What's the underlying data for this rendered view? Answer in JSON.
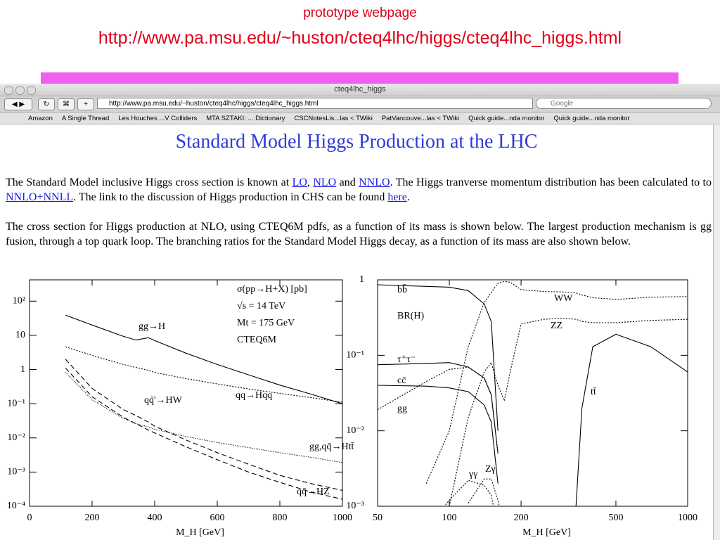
{
  "slide": {
    "caption": "prototype webpage",
    "url": "http://www.pa.msu.edu/~huston/cteq4lhc/higgs/cteq4lhc_higgs.html"
  },
  "browser": {
    "window_title": "cteq4lhc_higgs",
    "address": "http://www.pa.msu.edu/~huston/cteq4lhc/higgs/cteq4lhc_higgs.html",
    "search": "Google",
    "bookmarks": [
      "Amazon",
      "A Single Thread",
      "Les Houches ...V Colliders",
      "MTA SZTAKI: ... Dictionary",
      "CSCNotesLis...las < TWiki",
      "PatVancouve...las < TWiki",
      "Quick guide...nda monitor",
      "Quick guide...nda monitor"
    ]
  },
  "page": {
    "heading": "Standard Model Higgs Production at the LHC",
    "paragraphs": [
      [
        {
          "text": "The Standard Model inclusive Higgs cross section is known at "
        },
        {
          "link": "LO"
        },
        {
          "text": ", "
        },
        {
          "link": "NLO"
        },
        {
          "text": " and "
        },
        {
          "link": "NNLO"
        },
        {
          "text": ". The Higgs tranverse momentum distribution has been calculated to to "
        },
        {
          "link": "NNLO+NNLL"
        },
        {
          "text": ".  The link to the discussion of Higgs production in CHS can be found "
        },
        {
          "link": "here"
        },
        {
          "text": "."
        }
      ],
      [
        {
          "text": "The cross section for Higgs production at NLO, using CTEQ6M pdfs,  as a function of its mass is shown below. The largest production mechanism is gg fusion, through a top quark loop. The branching ratios for the Standard Model Higgs decay, as a function of its mass are also shown below."
        }
      ]
    ]
  },
  "chart_data": [
    {
      "type": "line",
      "xlabel": "M_H [GeV]",
      "xlim": [
        0,
        1000
      ],
      "xticks": [
        0,
        200,
        400,
        600,
        800,
        1000
      ],
      "ylog": true,
      "ylim": [
        0.0001,
        420
      ],
      "yticks": [
        {
          "value": 100,
          "label": "10²"
        },
        10,
        1,
        {
          "value": 0.1,
          "label": "10⁻¹"
        },
        {
          "value": 0.01,
          "label": "10⁻²"
        },
        {
          "value": 0.001,
          "label": "10⁻³"
        },
        {
          "value": 0.0001,
          "label": "10⁻⁴"
        }
      ],
      "annotations": [
        "σ(pp→H+X) [pb]",
        "√s = 14 TeV",
        "Mt = 175 GeV",
        "CTEQ6M"
      ],
      "x": [
        115,
        200,
        300,
        340,
        380,
        400,
        500,
        600,
        700,
        800,
        900,
        1000
      ],
      "series": [
        {
          "name": "gg→H",
          "color": "#000000",
          "style": "solid",
          "values": [
            39,
            20,
            9.3,
            7.3,
            8.5,
            7,
            3,
            1.4,
            0.7,
            0.35,
            0.19,
            0.1
          ]
        },
        {
          "name": "qq→Hqq",
          "color": "#000000",
          "style": "dotted",
          "values": [
            4.6,
            2.6,
            1.4,
            1.15,
            0.95,
            0.82,
            0.54,
            0.38,
            0.27,
            0.2,
            0.15,
            0.11
          ]
        },
        {
          "name": "qq̄'→HW",
          "color": "#000000",
          "style": "dashed",
          "values": [
            2,
            0.28,
            0.067,
            0.045,
            0.029,
            0.022,
            0.0087,
            0.0037,
            0.0017,
            0.0008,
            0.00046,
            0.00029
          ]
        },
        {
          "name": "gg,qq̄→Htt̄",
          "color": "#000000",
          "style": "fine",
          "values": [
            0.83,
            0.13,
            0.037,
            0.026,
            0.021,
            0.018,
            0.011,
            0.0073,
            0.0052,
            0.0037,
            0.0027,
            0.0019
          ]
        },
        {
          "name": "qq̄→HZ",
          "color": "#000000",
          "style": "dashed",
          "values": [
            1.1,
            0.16,
            0.04,
            0.026,
            0.017,
            0.014,
            0.0055,
            0.0023,
            0.001,
            0.0005,
            0.00026,
            0.00016
          ]
        }
      ]
    },
    {
      "type": "line",
      "xlabel": "M_H [GeV]",
      "xlog": true,
      "xlim": [
        50,
        1000
      ],
      "xticks": [
        50,
        100,
        200,
        500,
        1000
      ],
      "ylog": true,
      "ylim": [
        0.001,
        1
      ],
      "yticks": [
        1,
        {
          "value": 0.1,
          "label": "10⁻¹"
        },
        {
          "value": 0.01,
          "label": "10⁻²"
        },
        {
          "value": 0.001,
          "label": "10⁻³"
        }
      ],
      "annotations": [
        "BR(H)"
      ],
      "x": [
        50,
        80,
        100,
        120,
        140,
        150,
        160,
        170,
        180,
        200,
        250,
        300,
        340,
        360,
        400,
        500,
        700,
        1000
      ],
      "series": [
        {
          "name": "bb̄",
          "color": "#000000",
          "style": "solid",
          "values": [
            0.86,
            0.82,
            0.8,
            0.72,
            0.48,
            0.28,
            0.01,
            null,
            null,
            null,
            null,
            null,
            null,
            null,
            null,
            null,
            null,
            null
          ]
        },
        {
          "name": "WW",
          "color": "#000000",
          "style": "dotted",
          "values": [
            null,
            0.002,
            0.01,
            0.13,
            0.5,
            0.68,
            0.9,
            0.95,
            0.93,
            0.74,
            0.7,
            0.69,
            0.67,
            0.63,
            0.58,
            0.55,
            0.59,
            0.6
          ]
        },
        {
          "name": "ZZ",
          "color": "#000000",
          "style": "dotted",
          "values": [
            null,
            null,
            0.001,
            0.015,
            0.06,
            0.08,
            0.04,
            0.025,
            0.06,
            0.26,
            0.3,
            0.31,
            0.3,
            0.28,
            0.27,
            0.27,
            0.29,
            0.3
          ]
        },
        {
          "name": "τ⁺τ⁻",
          "color": "#000000",
          "style": "solid",
          "values": [
            0.075,
            0.078,
            0.08,
            0.07,
            0.05,
            0.03,
            0.005,
            null,
            null,
            null,
            null,
            null,
            null,
            null,
            null,
            null,
            null,
            null
          ]
        },
        {
          "name": "cc̄",
          "color": "#000000",
          "style": "solid",
          "values": [
            0.04,
            0.039,
            0.037,
            0.033,
            0.022,
            0.013,
            0.002,
            null,
            null,
            null,
            null,
            null,
            null,
            null,
            null,
            null,
            null,
            null
          ]
        },
        {
          "name": "gg",
          "color": "#000000",
          "style": "dotted",
          "values": [
            0.019,
            0.045,
            0.065,
            0.07,
            0.05,
            0.03,
            0.005,
            null,
            null,
            null,
            null,
            null,
            null,
            null,
            null,
            null,
            null,
            null
          ]
        },
        {
          "name": "tt̄",
          "color": "#000000",
          "style": "solid",
          "values": [
            null,
            null,
            null,
            null,
            null,
            null,
            null,
            null,
            null,
            null,
            null,
            null,
            0.001,
            0.02,
            0.13,
            0.19,
            0.13,
            0.06
          ]
        },
        {
          "name": "γγ",
          "color": "#000000",
          "style": "dotted",
          "values": [
            null,
            0.0005,
            0.0012,
            0.0022,
            0.0019,
            0.0014,
            0.0005,
            null,
            null,
            null,
            null,
            null,
            null,
            null,
            null,
            null,
            null,
            null
          ]
        },
        {
          "name": "Zγ",
          "color": "#000000",
          "style": "dotted",
          "values": [
            null,
            null,
            null,
            0.0011,
            0.0023,
            0.0023,
            0.0012,
            0.0005,
            null,
            null,
            null,
            null,
            null,
            null,
            null,
            null,
            null,
            null
          ]
        }
      ]
    }
  ]
}
